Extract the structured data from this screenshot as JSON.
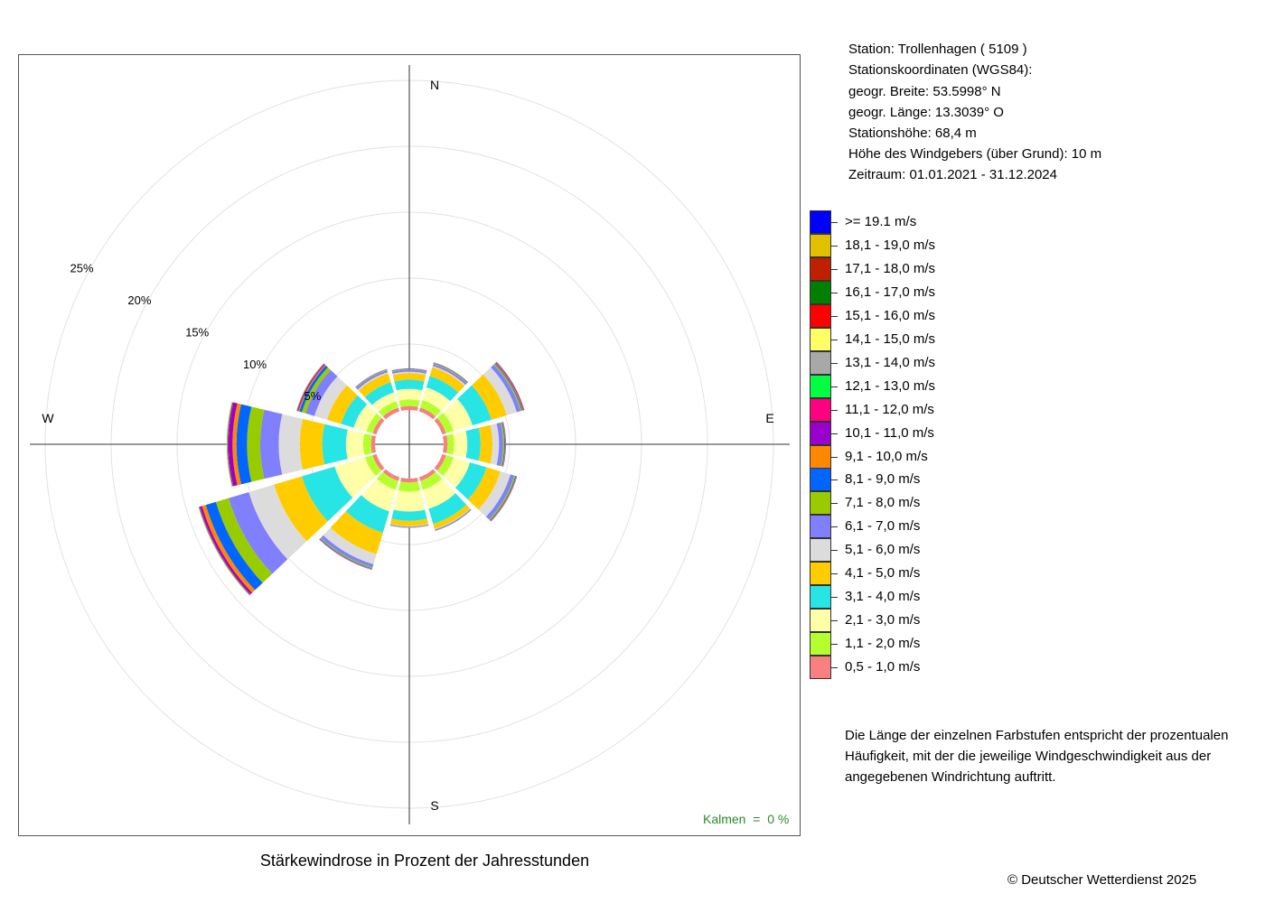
{
  "chart_data": {
    "type": "wind-rose",
    "title": "Stärkewindrose in Prozent der Jahresstunden",
    "unit": "%",
    "ring_values": [
      5,
      10,
      15,
      20,
      25
    ],
    "ring_labels": [
      "5%",
      "10%",
      "15%",
      "20%",
      "25%"
    ],
    "compass_labels": {
      "N": "N",
      "E": "E",
      "S": "S",
      "W": "W"
    },
    "sector_width_deg": 30,
    "directions_deg": [
      0,
      30,
      60,
      90,
      120,
      150,
      180,
      210,
      240,
      270,
      300,
      330
    ],
    "speed_classes": [
      {
        "label": "0,5 - 1,0 m/s",
        "color": "#f88080"
      },
      {
        "label": "1,1 - 2,0 m/s",
        "color": "#b5ff2f"
      },
      {
        "label": "2,1 - 3,0 m/s",
        "color": "#ffffa8"
      },
      {
        "label": "3,1 - 4,0 m/s",
        "color": "#28e5e5"
      },
      {
        "label": "4,1 - 5,0 m/s",
        "color": "#ffcc00"
      },
      {
        "label": "5,1 - 6,0 m/s",
        "color": "#dcdcdc"
      },
      {
        "label": "6,1 - 7,0 m/s",
        "color": "#8080ff"
      },
      {
        "label": "7,1 - 8,0 m/s",
        "color": "#99cc00"
      },
      {
        "label": "8,1 - 9,0 m/s",
        "color": "#0066ff"
      },
      {
        "label": "9,1 - 10,0 m/s",
        "color": "#ff8800"
      },
      {
        "label": "10,1 - 11,0 m/s",
        "color": "#9900cc"
      },
      {
        "label": "11,1 - 12,0 m/s",
        "color": "#ff0080"
      },
      {
        "label": "12,1 - 13,0 m/s",
        "color": "#00ff40"
      },
      {
        "label": "13,1 - 14,0 m/s",
        "color": "#a8a8a8"
      },
      {
        "label": "14,1 - 15,0 m/s",
        "color": "#ffff66"
      },
      {
        "label": "15,1 - 16,0 m/s",
        "color": "#ff0000"
      },
      {
        "label": "16,1 - 17,0 m/s",
        "color": "#008000"
      },
      {
        "label": "17,1 - 18,0 m/s",
        "color": "#c02000"
      },
      {
        "label": "18,1 - 19,0 m/s",
        "color": "#e0c000"
      },
      {
        "label": ">= 19.1 m/s",
        "color": "#0000ff"
      }
    ],
    "series": [
      {
        "direction": 0,
        "values": [
          0.3,
          0.5,
          0.8,
          0.7,
          0.5,
          0.1,
          0.15,
          0.04,
          0.03,
          0.02,
          0.01,
          0.01,
          0,
          0,
          0,
          0,
          0,
          0,
          0,
          0
        ]
      },
      {
        "direction": 30,
        "values": [
          0.3,
          0.6,
          1.0,
          0.9,
          0.7,
          0.1,
          0.15,
          0.06,
          0.04,
          0.02,
          0.01,
          0.01,
          0,
          0,
          0,
          0,
          0,
          0,
          0,
          0
        ]
      },
      {
        "direction": 60,
        "values": [
          0.3,
          0.6,
          1.5,
          1.5,
          1.2,
          0.8,
          0.3,
          0.1,
          0.06,
          0.05,
          0.04,
          0.04,
          0.02,
          0.01,
          0,
          0,
          0,
          0,
          0,
          0
        ]
      },
      {
        "direction": 90,
        "values": [
          0.3,
          0.5,
          1.0,
          1.0,
          0.9,
          0.5,
          0.3,
          0.1,
          0.06,
          0.04,
          0.02,
          0.01,
          0,
          0,
          0,
          0,
          0,
          0,
          0,
          0
        ]
      },
      {
        "direction": 120,
        "values": [
          0.3,
          0.6,
          1.3,
          1.3,
          1.1,
          0.8,
          0.3,
          0.1,
          0.06,
          0.04,
          0.02,
          0.01,
          0,
          0,
          0,
          0,
          0,
          0,
          0,
          0
        ]
      },
      {
        "direction": 150,
        "values": [
          0.3,
          0.7,
          1.5,
          1.2,
          0.4,
          0.05,
          0.08,
          0.02,
          0.01,
          0,
          0,
          0,
          0,
          0,
          0,
          0,
          0,
          0,
          0,
          0
        ]
      },
      {
        "direction": 180,
        "values": [
          0.3,
          0.7,
          1.5,
          0.7,
          0.4,
          0.05,
          0.07,
          0.02,
          0,
          0,
          0,
          0,
          0,
          0,
          0,
          0,
          0,
          0,
          0,
          0
        ]
      },
      {
        "direction": 210,
        "values": [
          0.3,
          0.7,
          1.7,
          1.7,
          1.7,
          0.8,
          0.25,
          0.08,
          0.05,
          0.03,
          0.02,
          0.01,
          0,
          0,
          0,
          0,
          0,
          0,
          0,
          0
        ]
      },
      {
        "direction": 240,
        "values": [
          0.3,
          0.6,
          2.4,
          2.6,
          2.2,
          2.0,
          1.6,
          1.0,
          0.8,
          0.3,
          0.15,
          0.07,
          0.05,
          0.02,
          0.01,
          0,
          0,
          0,
          0,
          0
        ]
      },
      {
        "direction": 270,
        "values": [
          0.3,
          0.6,
          1.3,
          1.8,
          1.7,
          1.6,
          1.4,
          1.0,
          0.8,
          0.3,
          0.3,
          0.07,
          0.05,
          0.02,
          0.02,
          0,
          0,
          0,
          0,
          0
        ]
      },
      {
        "direction": 300,
        "values": [
          0.3,
          0.5,
          1.0,
          1.0,
          1.1,
          1.0,
          0.7,
          0.3,
          0.2,
          0.08,
          0.06,
          0.05,
          0.03,
          0.02,
          0.01,
          0,
          0,
          0,
          0,
          0
        ]
      },
      {
        "direction": 330,
        "values": [
          0.3,
          0.5,
          0.7,
          0.8,
          0.7,
          0.1,
          0.15,
          0.04,
          0.03,
          0.02,
          0.01,
          0.01,
          0,
          0,
          0,
          0,
          0,
          0,
          0,
          0
        ]
      }
    ],
    "calm": "Kalmen  =  0 %"
  },
  "station": {
    "station_line": "Station:  Trollenhagen  ( 5109 )",
    "coords_header": "Stationskoordinaten (WGS84):",
    "lat": "geogr. Breite: 53.5998° N",
    "lon": "geogr. Länge: 13.3039° O",
    "elevation": "Stationshöhe: 68,4 m",
    "anemometer": "Höhe des Windgebers (über Grund): 10 m",
    "period": "Zeitraum: 01.01.2021 - 31.12.2024"
  },
  "footnote": "Die Länge der einzelnen Farbstufen entspricht der prozentualen Häufigkeit, mit der die jeweilige Windgeschwindigkeit aus der angegebenen Windrichtung auftritt.",
  "copyright": "© Deutscher Wetterdienst  2025"
}
